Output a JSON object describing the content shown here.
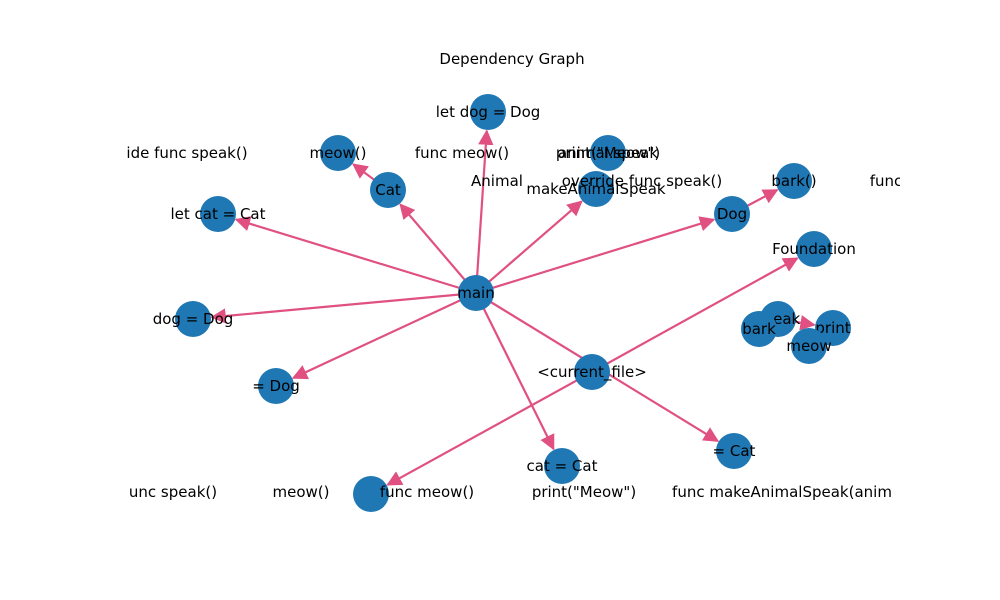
{
  "title": "Dependency Graph",
  "colors": {
    "node": "#1f77b4",
    "edge": "#e05080",
    "text": "#000000"
  },
  "nodes": [
    {
      "id": "main",
      "label": "main"
    },
    {
      "id": "current_file",
      "label": "<current_file>"
    },
    {
      "id": "cat_cls",
      "label": "Cat"
    },
    {
      "id": "dog_cls",
      "label": "Dog"
    },
    {
      "id": "meow_call",
      "label": "meow()"
    },
    {
      "id": "bark_call",
      "label": "bark()"
    },
    {
      "id": "let_dog",
      "label": "let dog = Dog"
    },
    {
      "id": "let_cat",
      "label": "let cat = Cat"
    },
    {
      "id": "dog_eq",
      "label": "dog = Dog"
    },
    {
      "id": "eq_dog",
      "label": "= Dog"
    },
    {
      "id": "cat_eq",
      "label": "cat = Cat"
    },
    {
      "id": "eq_cat",
      "label": "= Cat"
    },
    {
      "id": "make_speak",
      "label": "makeAnimalSpeak"
    },
    {
      "id": "foundation",
      "label": "Foundation"
    },
    {
      "id": "print_meow_top",
      "label": "print(\"Meow\")"
    },
    {
      "id": "meow_bottom",
      "label": ""
    },
    {
      "id": "speak",
      "label": "speak"
    },
    {
      "id": "bark",
      "label": "bark"
    },
    {
      "id": "print",
      "label": "print"
    },
    {
      "id": "meow",
      "label": "meow"
    }
  ],
  "edges": [
    {
      "from": "main",
      "to": "let_dog"
    },
    {
      "from": "main",
      "to": "cat_cls"
    },
    {
      "from": "main",
      "to": "let_cat"
    },
    {
      "from": "main",
      "to": "dog_eq"
    },
    {
      "from": "main",
      "to": "eq_dog"
    },
    {
      "from": "main",
      "to": "cat_eq"
    },
    {
      "from": "main",
      "to": "make_speak"
    },
    {
      "from": "main",
      "to": "dog_cls"
    },
    {
      "from": "main",
      "to": "eq_cat"
    },
    {
      "from": "cat_cls",
      "to": "meow_call"
    },
    {
      "from": "dog_cls",
      "to": "bark_call"
    },
    {
      "from": "current_file",
      "to": "foundation"
    },
    {
      "from": "current_file",
      "to": "meow_bottom"
    },
    {
      "from": "speak",
      "to": "print"
    }
  ],
  "floating_labels": [
    {
      "id": "ov_speak_left",
      "text": "ide func speak()"
    },
    {
      "id": "func_meow_top",
      "text": "func meow()"
    },
    {
      "id": "animal_speak",
      "text": "animal.speak"
    },
    {
      "id": "animal",
      "text": "Animal"
    },
    {
      "id": "override_speak",
      "text": "override func speak()"
    },
    {
      "id": "func_right",
      "text": "func"
    },
    {
      "id": "unc_speak",
      "text": "unc speak()"
    },
    {
      "id": "meow_bottom_lbl",
      "text": "meow()"
    },
    {
      "id": "func_meow_bottom",
      "text": "func meow()"
    },
    {
      "id": "print_meow_bottom",
      "text": "print(\"Meow\")"
    },
    {
      "id": "func_make",
      "text": "func makeAnimalSpeak(anim"
    }
  ]
}
